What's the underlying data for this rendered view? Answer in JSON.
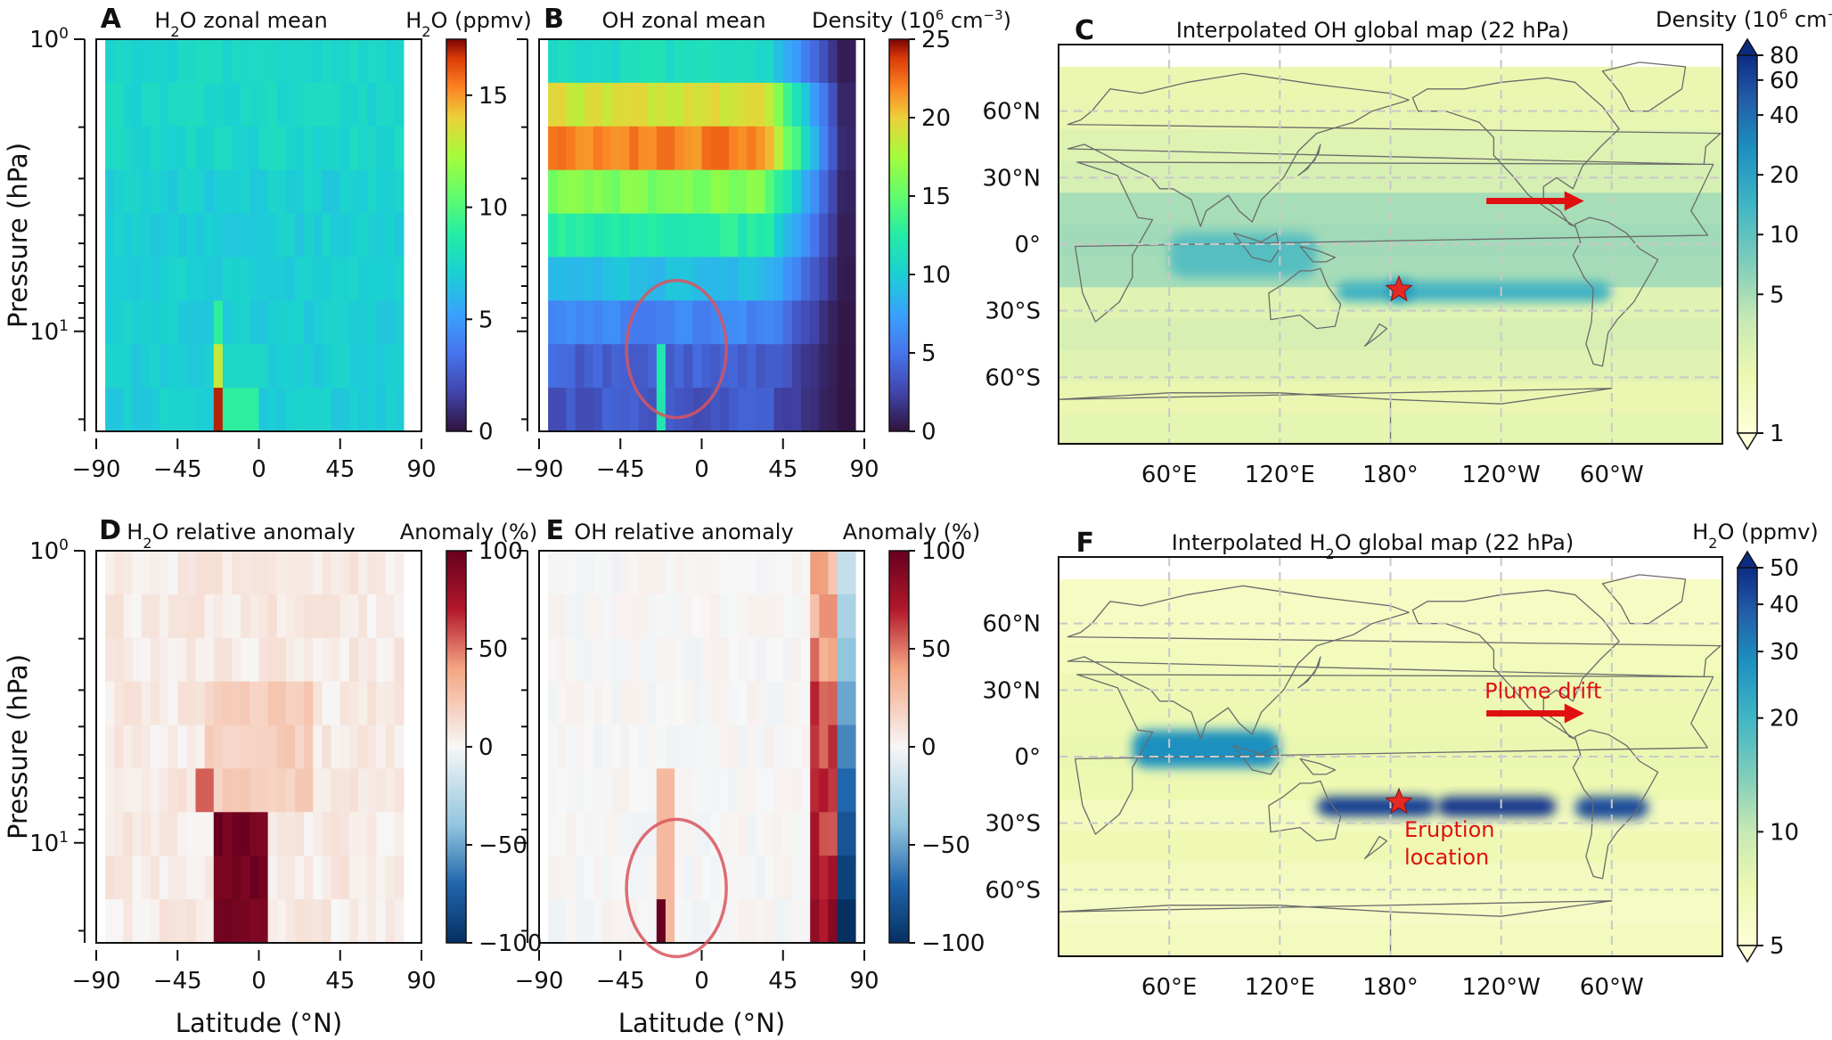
{
  "figure": {
    "colors": {
      "star": "#e52a24",
      "arrow": "#e01010",
      "circle": "#d9535e",
      "annotation": "#e01010"
    },
    "annotations": {
      "plume_drift": "Plume drift",
      "eruption_line1": "Eruption",
      "eruption_line2": "location"
    }
  },
  "chart_data": [
    {
      "id": "A",
      "letter": "A",
      "type": "heatmap",
      "title_html": "H<tspan baseline-shift=\"sub\" font-size=\"16\">2</tspan>O zonal mean",
      "xlabel": "",
      "ylabel": "Pressure (hPa)",
      "xticks": [
        -90,
        -45,
        0,
        45,
        90
      ],
      "xlim": [
        -90,
        90
      ],
      "yscale": "log",
      "yticks": [
        1,
        10
      ],
      "yticklabels": [
        "10^0",
        "10^1"
      ],
      "ylim_hpa": [
        1,
        22
      ],
      "colormap": "turbo",
      "colorbar": {
        "label_html": "H<tspan baseline-shift=\"sub\" font-size=\"16\">2</tspan>O (ppmv)",
        "ticks": [
          0,
          5,
          10,
          15
        ],
        "range": [
          0,
          17.5
        ]
      },
      "description_values": {
        "background": 7,
        "hotspot_lat": -22,
        "hotspot_max": 17,
        "level_hpa": 15
      }
    },
    {
      "id": "B",
      "letter": "B",
      "type": "heatmap",
      "title_html": "OH zonal mean",
      "xlabel": "",
      "ylabel": "",
      "xticks": [
        -90,
        -45,
        0,
        45,
        90
      ],
      "xlim": [
        -90,
        90
      ],
      "yscale": "log",
      "ylim_hpa": [
        1,
        22
      ],
      "colormap": "turbo",
      "colorbar": {
        "label_html": "Density (10<tspan baseline-shift=\"super\" font-size=\"15\">6</tspan> cm<tspan baseline-shift=\"super\" font-size=\"15\">−3</tspan>)",
        "ticks": [
          0,
          5,
          10,
          15,
          20,
          25
        ],
        "range": [
          0,
          25
        ]
      },
      "description_values": {
        "peak": 24,
        "peak_levels_hpa": [
          1.5,
          3
        ]
      }
    },
    {
      "id": "C",
      "letter": "C",
      "type": "map",
      "title_html": "Interpolated OH global map (22 hPa)",
      "xticks_labels": [
        "60°E",
        "120°E",
        "180°",
        "120°W",
        "60°W"
      ],
      "yticks_labels": [
        "60°N",
        "30°N",
        "0°",
        "30°S",
        "60°S"
      ],
      "colorbar": {
        "label_html": "Density (10<tspan baseline-shift=\"super\" font-size=\"15\">6</tspan> cm<tspan baseline-shift=\"super\" font-size=\"15\">−3</tspan>)",
        "ticks": [
          1,
          5,
          10,
          20,
          40,
          60,
          80
        ],
        "scale": "log"
      },
      "eruption": {
        "lon": 184.6,
        "lat": -20.5
      }
    },
    {
      "id": "D",
      "letter": "D",
      "type": "heatmap",
      "title_html": "H<tspan baseline-shift=\"sub\" font-size=\"16\">2</tspan>O relative anomaly",
      "xlabel": "Latitude (°N)",
      "ylabel": "Pressure (hPa)",
      "xticks": [
        -90,
        -45,
        0,
        45,
        90
      ],
      "xlim": [
        -90,
        90
      ],
      "yscale": "log",
      "yticks": [
        1,
        10
      ],
      "yticklabels": [
        "10^0",
        "10^1"
      ],
      "ylim_hpa": [
        1,
        22
      ],
      "colormap": "RdBu_r",
      "colorbar": {
        "label_html": "Anomaly (%)",
        "ticks": [
          -100,
          -50,
          0,
          50,
          100
        ],
        "range": [
          -100,
          100
        ]
      },
      "description_values": {
        "max_anomaly": 100,
        "hotspot_lat": -20
      }
    },
    {
      "id": "E",
      "letter": "E",
      "type": "heatmap",
      "title_html": "OH relative anomaly",
      "xlabel": "Latitude (°N)",
      "ylabel": "",
      "xticks": [
        -90,
        -45,
        0,
        45,
        90
      ],
      "xlim": [
        -90,
        90
      ],
      "yscale": "log",
      "ylim_hpa": [
        1,
        22
      ],
      "colormap": "RdBu_r",
      "colorbar": {
        "label_html": "Anomaly (%)",
        "ticks": [
          -100,
          -50,
          0,
          50,
          100
        ],
        "range": [
          -100,
          100
        ]
      },
      "description_values": {
        "polar_anomaly_lat": 68,
        "hotspot_lat": -20
      }
    },
    {
      "id": "F",
      "letter": "F",
      "type": "map",
      "title_html": "Interpolated H<tspan baseline-shift=\"sub\" font-size=\"16\">2</tspan>O global map (22 hPa)",
      "xticks_labels": [
        "60°E",
        "120°E",
        "180°",
        "120°W",
        "60°W"
      ],
      "yticks_labels": [
        "60°N",
        "30°N",
        "0°",
        "30°S",
        "60°S"
      ],
      "colorbar": {
        "label_html": "H<tspan baseline-shift=\"sub\" font-size=\"16\">2</tspan>O (ppmv)",
        "ticks": [
          5,
          10,
          20,
          30,
          40,
          50
        ],
        "scale": "log"
      },
      "eruption": {
        "lon": 184.6,
        "lat": -20.5
      }
    }
  ]
}
